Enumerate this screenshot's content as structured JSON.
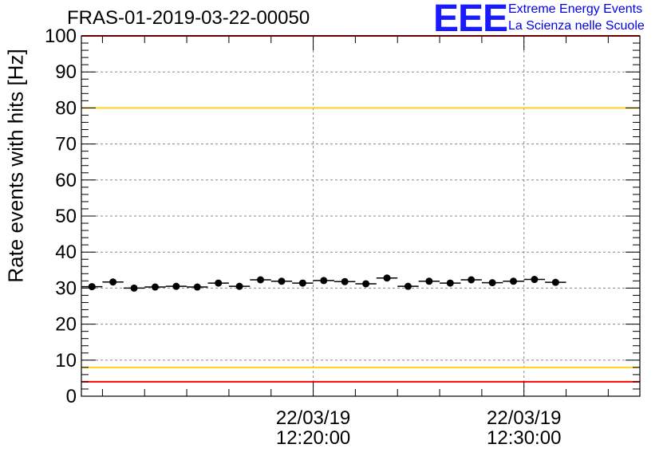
{
  "chart_data": {
    "type": "scatter",
    "title": "FRAS-01-2019-03-22-00050",
    "xlabel": "",
    "ylabel": "Rate events with hits [Hz]",
    "ylim": [
      0,
      100
    ],
    "yticks": [
      "0",
      "10",
      "20",
      "30",
      "40",
      "50",
      "60",
      "70",
      "80",
      "90",
      "100"
    ],
    "xlim_minutes": [
      9.0,
      35.5
    ],
    "xtick_major_labels": [
      {
        "minute": 20,
        "date": "22/03/19",
        "time": "12:20:00"
      },
      {
        "minute": 30,
        "date": "22/03/19",
        "time": "12:30:00"
      }
    ],
    "series": [
      {
        "name": "rate",
        "bin_width_minutes": 1,
        "x_minutes": [
          9.5,
          10.5,
          11.5,
          12.5,
          13.5,
          14.5,
          15.5,
          16.5,
          17.5,
          18.5,
          19.5,
          20.5,
          21.5,
          22.5,
          23.5,
          24.5,
          25.5,
          26.5,
          27.5,
          28.5,
          29.5,
          30.5,
          31.5
        ],
        "values": [
          30.4,
          31.7,
          30.0,
          30.3,
          30.5,
          30.3,
          31.4,
          30.5,
          32.3,
          31.9,
          31.4,
          32.1,
          31.8,
          31.2,
          32.8,
          30.5,
          31.9,
          31.4,
          32.3,
          31.5,
          31.9,
          32.4,
          31.6
        ]
      }
    ],
    "reference_lines": [
      {
        "value": 100,
        "color": "#ff0000"
      },
      {
        "value": 80,
        "color": "#ffd21f"
      },
      {
        "value": 8,
        "color": "#ffd21f"
      },
      {
        "value": 4,
        "color": "#ff0000"
      }
    ]
  },
  "logo": {
    "mark": "EEE",
    "line1": "Extreme Energy Events",
    "line2": "La Scienza nelle Scuole"
  }
}
